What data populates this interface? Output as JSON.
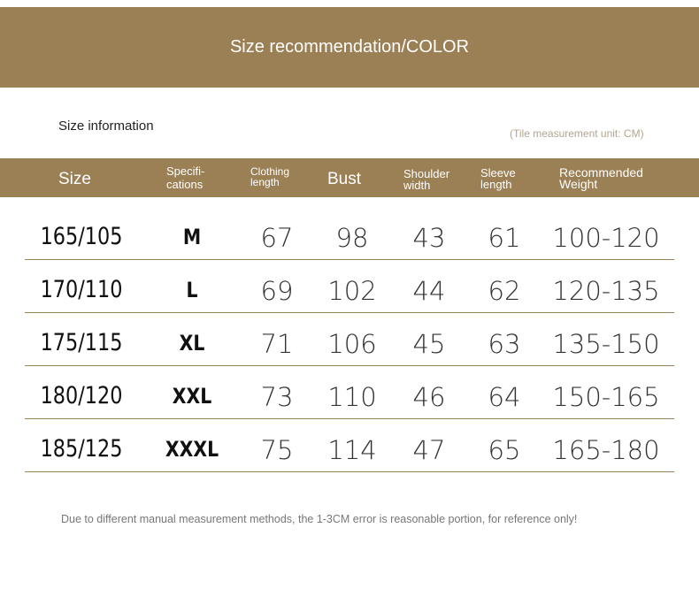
{
  "banner": {
    "title": "Size recommendation/COLOR"
  },
  "section": {
    "title": "Size information",
    "unit_note": "(Tile measurement unit: CM)"
  },
  "table": {
    "headers": [
      "Size",
      "Specifi- cations",
      "Clothing length",
      "Bust",
      "Shoulder width",
      "Sleeve length",
      "Recommended Weight"
    ],
    "header_lines": [
      [
        "Size"
      ],
      [
        "Specifi-",
        "cations"
      ],
      [
        "Clothing",
        "length"
      ],
      [
        "Bust"
      ],
      [
        "Shoulder",
        "width"
      ],
      [
        "Sleeve",
        "length"
      ],
      [
        "Recommended",
        "Weight"
      ]
    ],
    "rows": [
      [
        "165/105",
        "M",
        "67",
        "98",
        "43",
        "61",
        "100-120"
      ],
      [
        "170/110",
        "L",
        "69",
        "102",
        "44",
        "62",
        "120-135"
      ],
      [
        "175/115",
        "XL",
        "71",
        "106",
        "45",
        "63",
        "135-150"
      ],
      [
        "180/120",
        "XXL",
        "73",
        "110",
        "46",
        "64",
        "150-165"
      ],
      [
        "185/125",
        "XXXL",
        "75",
        "114",
        "47",
        "65",
        "165-180"
      ]
    ]
  },
  "footer_note": "Due to different manual measurement methods, the 1-3CM error is reasonable portion, for reference only!",
  "colors": {
    "accent": "#9b7f55",
    "header_text": "#ffffff",
    "unit_note": "#b3a58e"
  }
}
